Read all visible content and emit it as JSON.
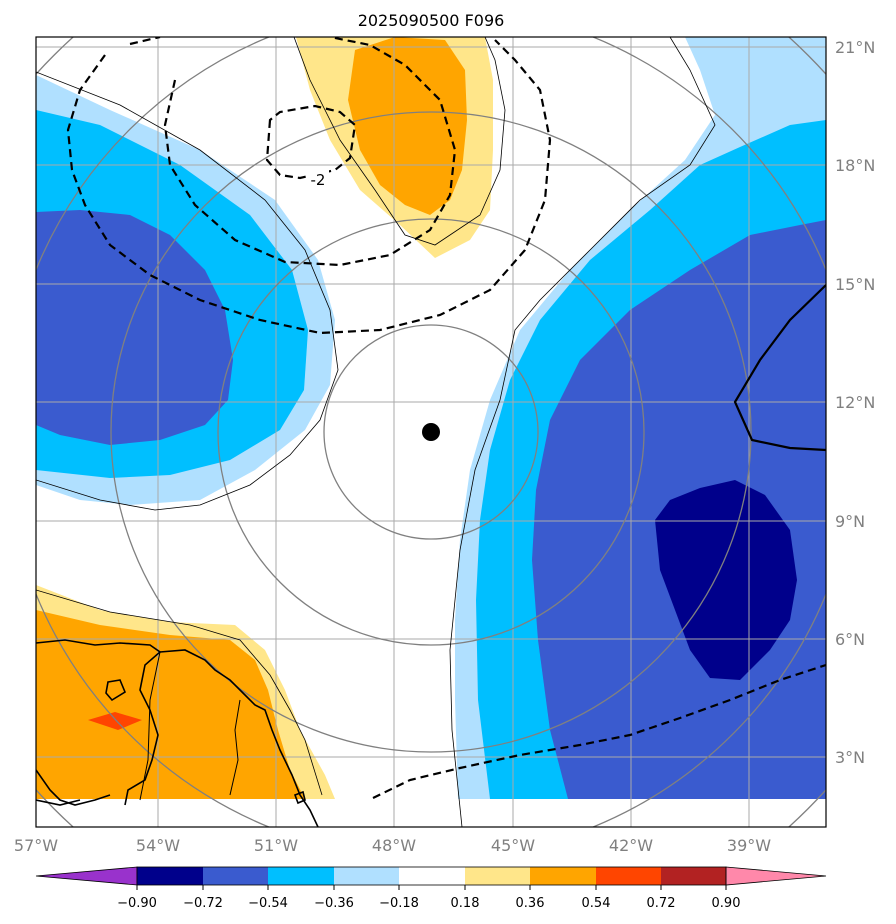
{
  "title": "2025090500 F096",
  "map": {
    "lon_range": [
      -57,
      -37.5
    ],
    "lat_range": [
      1.3,
      21.1
    ],
    "lon_ticks": [
      "57°W",
      "54°W",
      "51°W",
      "48°W",
      "45°W",
      "42°W",
      "39°W"
    ],
    "lat_ticks": [
      "21°N",
      "18°N",
      "15°N",
      "12°N",
      "9°N",
      "6°N",
      "3°N"
    ],
    "storm_center": {
      "lon": -47.1,
      "lat": 11.2
    },
    "contour_label": "-2",
    "grid": true,
    "range_rings": 5
  },
  "colorbar": {
    "ticks": [
      "−0.90",
      "−0.72",
      "−0.54",
      "−0.36",
      "−0.18",
      "0.18",
      "0.36",
      "0.54",
      "0.72",
      "0.90"
    ],
    "colors": [
      "#9932cc",
      "#00008b",
      "#3a5bcf",
      "#00bfff",
      "#b0e0ff",
      "#ffffff",
      "#ffe68a",
      "#ffa500",
      "#ff4500",
      "#b22222",
      "#ff88aa"
    ],
    "extend": "both"
  }
}
